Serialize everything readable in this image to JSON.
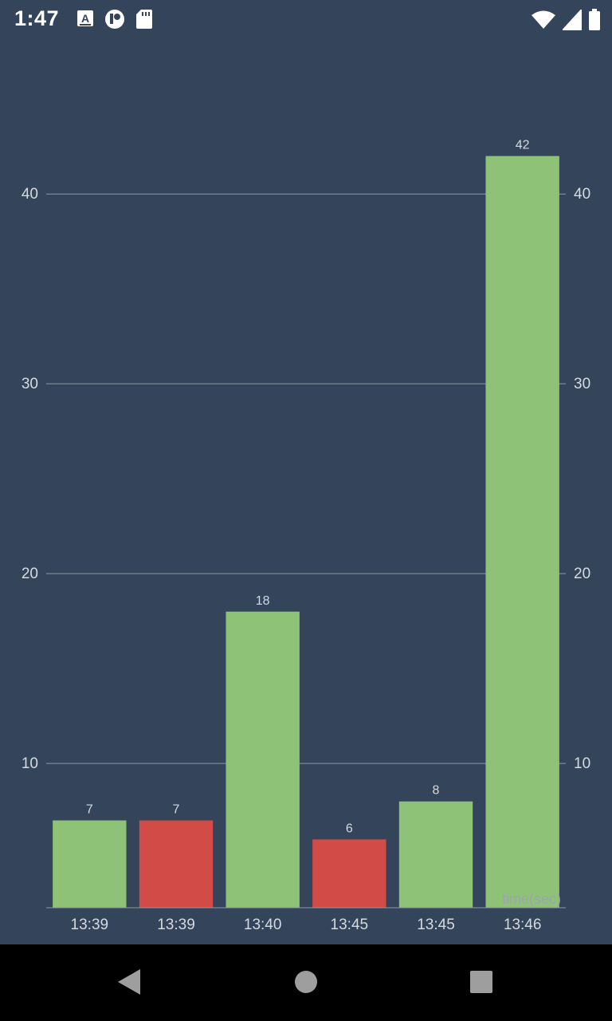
{
  "status_bar": {
    "time": "1:47",
    "left_icons": [
      "font-a-icon",
      "circle-app-icon",
      "sd-card-icon"
    ],
    "right_icons": [
      "wifi-icon",
      "cell-signal-icon",
      "battery-icon"
    ]
  },
  "chart_data": {
    "type": "bar",
    "categories": [
      "13:39",
      "13:39",
      "13:40",
      "13:45",
      "13:45",
      "13:46"
    ],
    "values": [
      7,
      7,
      18,
      6,
      8,
      42
    ],
    "bar_colors": [
      "#8ec377",
      "#d34b46",
      "#8ec377",
      "#d34b46",
      "#8ec377",
      "#8ec377"
    ],
    "xlabel": "time(sec)",
    "ylabel": "",
    "ylim": [
      2.4,
      44
    ],
    "yticks": [
      10,
      20,
      30,
      40
    ],
    "ytick_labels": [
      "10",
      "20",
      "30",
      "40"
    ],
    "grid": true,
    "right_axis": true
  },
  "colors": {
    "background": "#34445a",
    "green": "#8ec377",
    "red": "#d34b46",
    "text": "#d5dae0",
    "grid": "#8e99a6",
    "nav_bar": "#000000",
    "nav_icon": "#9e9e9e"
  },
  "nav_bar": {
    "buttons": [
      "back-icon",
      "home-icon",
      "recents-icon"
    ]
  }
}
